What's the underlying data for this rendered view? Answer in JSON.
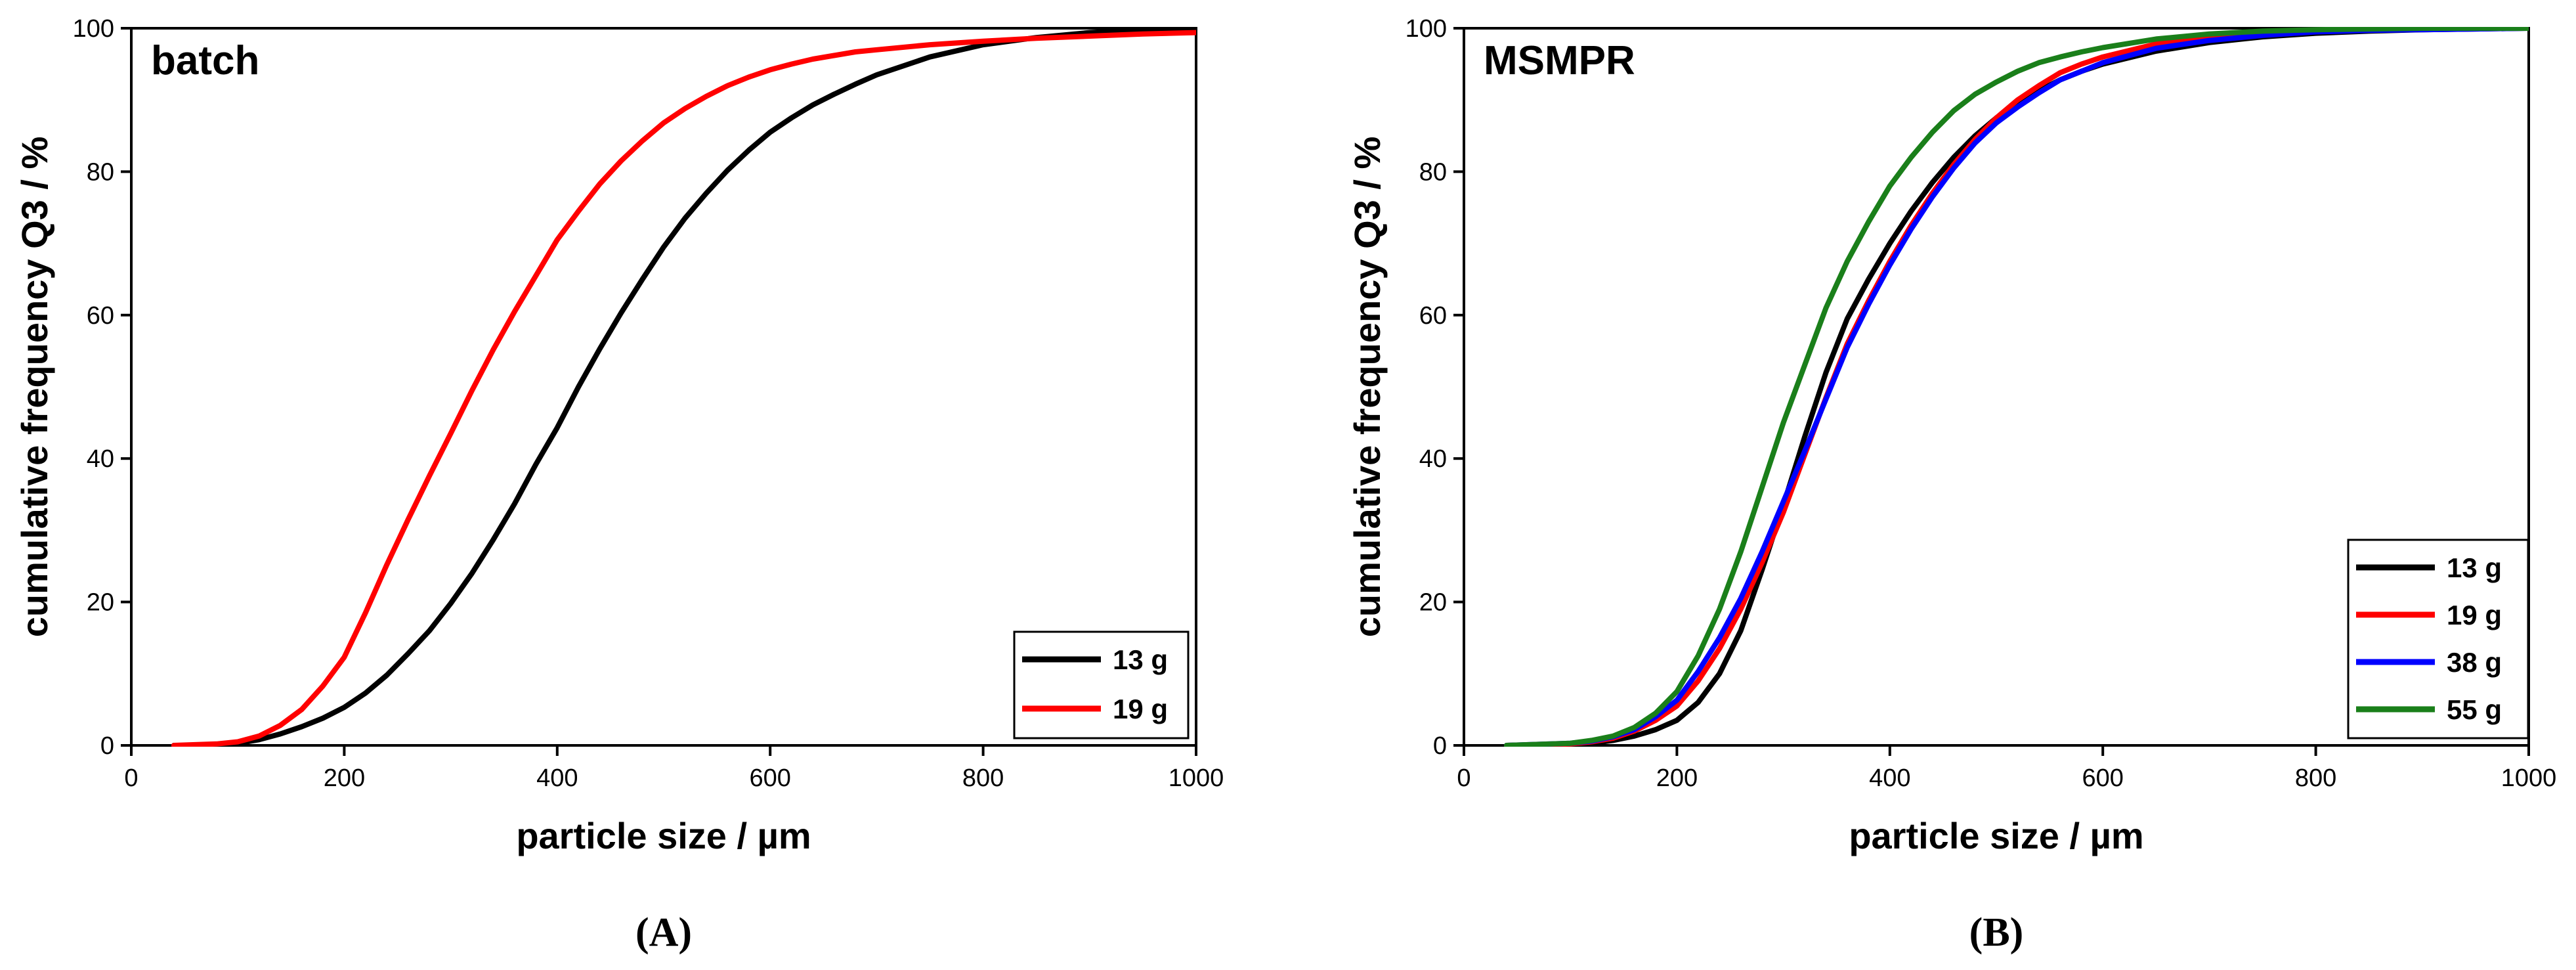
{
  "chart_data": [
    {
      "type": "line",
      "title": "batch",
      "panel_label": "(A)",
      "xlabel": "particle size / µm",
      "ylabel": "cumulative frequency Q3 / %",
      "xlim": [
        0,
        1000
      ],
      "ylim": [
        0,
        100
      ],
      "xticks": [
        0,
        200,
        400,
        600,
        800,
        1000
      ],
      "yticks": [
        0,
        20,
        40,
        60,
        80,
        100
      ],
      "legend_position": "bottom-right",
      "series": [
        {
          "name": "13 g",
          "color": "#000000",
          "x": [
            40,
            80,
            100,
            120,
            140,
            160,
            180,
            200,
            220,
            240,
            260,
            280,
            300,
            320,
            340,
            360,
            380,
            400,
            420,
            440,
            460,
            480,
            500,
            520,
            540,
            560,
            580,
            600,
            620,
            640,
            660,
            680,
            700,
            750,
            800,
            850,
            900,
            950,
            1000
          ],
          "y": [
            0,
            0,
            0.3,
            0.8,
            1.6,
            2.6,
            3.8,
            5.3,
            7.3,
            9.8,
            12.8,
            16.0,
            19.8,
            24.0,
            28.7,
            33.7,
            39.2,
            44.3,
            50.0,
            55.3,
            60.3,
            65.0,
            69.5,
            73.5,
            77.0,
            80.2,
            83.0,
            85.5,
            87.5,
            89.3,
            90.8,
            92.2,
            93.5,
            96.0,
            97.7,
            98.7,
            99.4,
            99.8,
            100
          ]
        },
        {
          "name": "19 g",
          "color": "#ff0000",
          "x": [
            40,
            80,
            100,
            120,
            140,
            160,
            180,
            200,
            220,
            240,
            260,
            280,
            300,
            320,
            340,
            360,
            380,
            400,
            420,
            440,
            460,
            480,
            500,
            520,
            540,
            560,
            580,
            600,
            620,
            640,
            660,
            680,
            700,
            750,
            800,
            850,
            900,
            950,
            1000
          ],
          "y": [
            0,
            0.2,
            0.5,
            1.3,
            2.8,
            5.0,
            8.3,
            12.3,
            18.5,
            25.2,
            31.5,
            37.6,
            43.5,
            49.5,
            55.2,
            60.5,
            65.5,
            70.5,
            74.5,
            78.3,
            81.5,
            84.3,
            86.8,
            88.8,
            90.5,
            92.0,
            93.2,
            94.2,
            95.0,
            95.7,
            96.2,
            96.7,
            97.0,
            97.7,
            98.2,
            98.6,
            98.9,
            99.2,
            99.4
          ]
        }
      ]
    },
    {
      "type": "line",
      "title": "MSMPR",
      "panel_label": "(B)",
      "xlabel": "particle size / µm",
      "ylabel": "cumulative frequency Q3 / %",
      "xlim": [
        0,
        1000
      ],
      "ylim": [
        0,
        100
      ],
      "xticks": [
        0,
        200,
        400,
        600,
        800,
        1000
      ],
      "yticks": [
        0,
        20,
        40,
        60,
        80,
        100
      ],
      "legend_position": "bottom-right",
      "series": [
        {
          "name": "13 g",
          "color": "#000000",
          "x": [
            40,
            100,
            120,
            140,
            160,
            180,
            200,
            220,
            240,
            260,
            280,
            300,
            320,
            340,
            360,
            380,
            400,
            420,
            440,
            460,
            480,
            500,
            520,
            540,
            560,
            580,
            600,
            650,
            700,
            750,
            800,
            850,
            900,
            950,
            1000
          ],
          "y": [
            0,
            0.1,
            0.3,
            0.7,
            1.3,
            2.2,
            3.5,
            6.0,
            10.0,
            16.0,
            24.5,
            33.5,
            43.0,
            52.0,
            59.5,
            65.0,
            70.0,
            74.5,
            78.5,
            82.0,
            85.0,
            87.5,
            89.5,
            91.3,
            92.8,
            94.0,
            95.0,
            96.8,
            98.0,
            98.8,
            99.3,
            99.6,
            99.8,
            99.9,
            100
          ]
        },
        {
          "name": "19 g",
          "color": "#ff0000",
          "x": [
            40,
            100,
            120,
            140,
            160,
            180,
            200,
            220,
            240,
            260,
            280,
            300,
            320,
            340,
            360,
            380,
            400,
            420,
            440,
            460,
            480,
            500,
            520,
            540,
            560,
            580,
            600,
            650,
            700,
            750,
            800,
            850,
            900,
            950,
            1000
          ],
          "y": [
            0,
            0.2,
            0.5,
            1.0,
            2.0,
            3.5,
            5.5,
            9.0,
            13.5,
            19.0,
            25.5,
            32.5,
            40.5,
            48.5,
            56.0,
            62.0,
            67.5,
            72.5,
            77.0,
            81.0,
            84.5,
            87.5,
            90.0,
            92.0,
            93.8,
            95.0,
            96.0,
            97.8,
            98.8,
            99.4,
            99.7,
            99.8,
            99.9,
            100,
            100
          ]
        },
        {
          "name": "38 g",
          "color": "#0000ff",
          "x": [
            40,
            100,
            120,
            140,
            160,
            180,
            200,
            220,
            240,
            260,
            280,
            300,
            320,
            340,
            360,
            380,
            400,
            420,
            440,
            460,
            480,
            500,
            520,
            540,
            560,
            580,
            600,
            650,
            700,
            750,
            800,
            850,
            900,
            950,
            1000
          ],
          "y": [
            0,
            0.3,
            0.6,
            1.2,
            2.2,
            4.0,
            6.3,
            10.3,
            15.0,
            20.5,
            27.0,
            34.0,
            41.0,
            48.3,
            55.5,
            61.5,
            67.0,
            72.0,
            76.5,
            80.5,
            84.0,
            86.8,
            89.0,
            91.0,
            92.8,
            94.0,
            95.2,
            97.2,
            98.3,
            99.0,
            99.5,
            99.7,
            99.8,
            99.9,
            100
          ]
        },
        {
          "name": "55 g",
          "color": "#1a7f1a",
          "x": [
            40,
            100,
            120,
            140,
            160,
            180,
            200,
            220,
            240,
            260,
            280,
            300,
            320,
            340,
            360,
            380,
            400,
            420,
            440,
            460,
            480,
            500,
            520,
            540,
            560,
            580,
            600,
            650,
            700,
            750,
            800,
            850,
            900,
            950,
            1000
          ],
          "y": [
            0,
            0.3,
            0.7,
            1.3,
            2.5,
            4.5,
            7.5,
            12.5,
            19.0,
            27.0,
            36.0,
            45.0,
            53.0,
            61.0,
            67.5,
            73.0,
            78.0,
            82.0,
            85.5,
            88.5,
            90.8,
            92.5,
            94.0,
            95.2,
            96.0,
            96.7,
            97.3,
            98.5,
            99.2,
            99.6,
            99.8,
            99.9,
            100,
            100,
            100
          ]
        }
      ]
    }
  ]
}
